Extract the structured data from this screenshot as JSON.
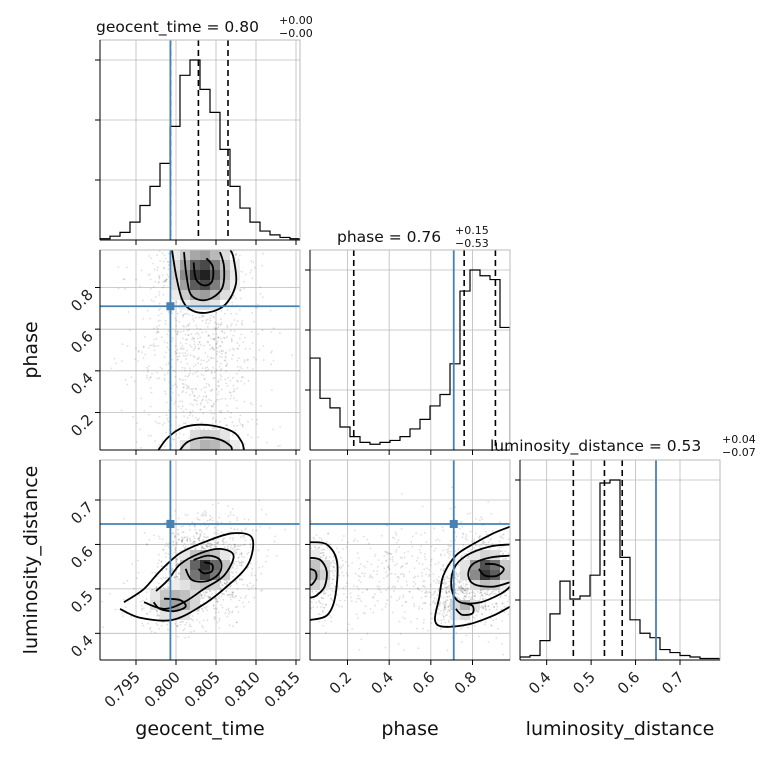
{
  "chart_data": {
    "type": "corner",
    "parameters": [
      "geocent_time",
      "phase",
      "luminosity_distance"
    ],
    "truths": {
      "geocent_time": 0.7993,
      "phase": 0.71,
      "luminosity_distance": 0.646
    },
    "truth_color": "#4682b4",
    "panels": [
      {
        "kind": "hist1d",
        "param": "geocent_time",
        "title": {
          "main": "geocent_time = 0.80",
          "sup": "+0.00",
          "sub": "−0.00"
        },
        "xlim": [
          0.7905,
          0.8155
        ],
        "edges": [
          0.7905,
          0.79175,
          0.793,
          0.79425,
          0.7955,
          0.79675,
          0.798,
          0.79925,
          0.8005,
          0.80175,
          0.803,
          0.80425,
          0.8055,
          0.80675,
          0.808,
          0.80925,
          0.8105,
          0.81175,
          0.813,
          0.81425,
          0.8155
        ],
        "counts": [
          1,
          3,
          6,
          14,
          27,
          42,
          60,
          89,
          129,
          141,
          118,
          100,
          71,
          42,
          25,
          14,
          7,
          4,
          2,
          1
        ],
        "quantiles": [
          0.7993,
          0.8028,
          0.8065
        ],
        "ygrid_fractions": [
          0.3,
          0.6,
          0.9
        ]
      },
      {
        "kind": "hist1d",
        "param": "phase",
        "title": {
          "main": "phase = 0.76",
          "sup": "+0.15",
          "sub": "−0.53"
        },
        "xlim": [
          0.02,
          0.98
        ],
        "edges": [
          0.02,
          0.068,
          0.116,
          0.164,
          0.212,
          0.26,
          0.308,
          0.356,
          0.404,
          0.452,
          0.5,
          0.548,
          0.596,
          0.644,
          0.692,
          0.74,
          0.788,
          0.836,
          0.884,
          0.932,
          0.98
        ],
        "counts": [
          48,
          27,
          22,
          12,
          7,
          4,
          3,
          4,
          5,
          7,
          11,
          16,
          23,
          29,
          45,
          83,
          94,
          91,
          89,
          64
        ],
        "quantiles": [
          0.23,
          0.76,
          0.91
        ],
        "ygrid_fractions": [
          0.3,
          0.6,
          0.9
        ]
      },
      {
        "kind": "hist1d",
        "param": "luminosity_distance",
        "title": {
          "main": "luminosity_distance = 0.53",
          "sup": "+0.04",
          "sub": "−0.07"
        },
        "xlim": [
          0.34,
          0.79
        ],
        "edges": [
          0.34,
          0.3625,
          0.385,
          0.4075,
          0.43,
          0.4525,
          0.475,
          0.4975,
          0.52,
          0.5425,
          0.565,
          0.5875,
          0.61,
          0.6325,
          0.655,
          0.6775,
          0.7,
          0.7225,
          0.745,
          0.7675,
          0.79
        ],
        "counts": [
          2,
          3,
          13,
          31,
          53,
          41,
          43,
          57,
          119,
          121,
          69,
          27,
          18,
          15,
          7,
          5,
          3,
          2,
          1,
          1
        ],
        "quantiles": [
          0.46,
          0.53,
          0.57
        ],
        "ygrid_fractions": [
          0.3,
          0.6,
          0.9
        ]
      }
    ],
    "axes": {
      "geocent_time": {
        "range": [
          0.7905,
          0.8155
        ],
        "ticks": [
          0.795,
          0.8,
          0.805,
          0.81,
          0.815
        ],
        "tick_labels": [
          "0.795",
          "0.800",
          "0.805",
          "0.810",
          "0.815"
        ],
        "label": "geocent_time"
      },
      "phase": {
        "range": [
          0.02,
          0.98
        ],
        "ticks": [
          0.2,
          0.4,
          0.6,
          0.8
        ],
        "tick_labels": [
          "0.2",
          "0.4",
          "0.6",
          "0.8"
        ],
        "label": "phase"
      },
      "luminosity_distance": {
        "range": [
          0.34,
          0.79
        ],
        "ticks": [
          0.4,
          0.5,
          0.6,
          0.7
        ],
        "tick_labels": [
          "0.4",
          "0.5",
          "0.6",
          "0.7"
        ],
        "label": "luminosity_distance"
      }
    },
    "scatter_panels": [
      {
        "x": "geocent_time",
        "y": "phase",
        "blobs": [
          {
            "cx": 0.8033,
            "cy": 0.86,
            "sx": 0.0026,
            "sy": 0.08,
            "n": 520
          },
          {
            "cx": 0.804,
            "cy": 0.05,
            "sx": 0.003,
            "sy": 0.06,
            "n": 160
          },
          {
            "cx": 0.803,
            "cy": 0.5,
            "sx": 0.004,
            "sy": 0.3,
            "n": 900
          }
        ],
        "peaks": [
          {
            "cx": 0.8033,
            "cy": 0.86,
            "sx": 0.0019,
            "sy": 0.075,
            "w": 1.0
          },
          {
            "cx": 0.804,
            "cy": 0.04,
            "sx": 0.002,
            "sy": 0.05,
            "w": 0.35
          }
        ],
        "contours": [
          [
            [
              0.7995,
              0.98
            ],
            [
              0.8,
              0.86
            ],
            [
              0.8008,
              0.74
            ],
            [
              0.802,
              0.69
            ],
            [
              0.804,
              0.68
            ],
            [
              0.8062,
              0.72
            ],
            [
              0.8075,
              0.82
            ],
            [
              0.8072,
              0.94
            ],
            [
              0.8068,
              0.98
            ]
          ],
          [
            [
              0.801,
              0.97
            ],
            [
              0.8013,
              0.86
            ],
            [
              0.8018,
              0.77
            ],
            [
              0.803,
              0.74
            ],
            [
              0.8045,
              0.75
            ],
            [
              0.8058,
              0.8
            ],
            [
              0.806,
              0.9
            ],
            [
              0.8055,
              0.97
            ]
          ],
          [
            [
              0.8022,
              0.92
            ],
            [
              0.8025,
              0.84
            ],
            [
              0.8035,
              0.81
            ],
            [
              0.8045,
              0.83
            ],
            [
              0.8046,
              0.9
            ],
            [
              0.8038,
              0.94
            ]
          ],
          [
            [
              0.7978,
              0.02
            ],
            [
              0.799,
              0.08
            ],
            [
              0.801,
              0.13
            ],
            [
              0.804,
              0.14
            ],
            [
              0.807,
              0.11
            ],
            [
              0.8082,
              0.06
            ],
            [
              0.8085,
              0.02
            ]
          ],
          [
            [
              0.8005,
              0.02
            ],
            [
              0.8015,
              0.06
            ],
            [
              0.8035,
              0.08
            ],
            [
              0.8055,
              0.07
            ],
            [
              0.8068,
              0.04
            ],
            [
              0.807,
              0.02
            ]
          ]
        ]
      },
      {
        "x": "geocent_time",
        "y": "luminosity_distance",
        "blobs": [
          {
            "cx": 0.8035,
            "cy": 0.535,
            "sx": 0.0028,
            "sy": 0.045,
            "n": 800
          },
          {
            "cx": 0.8,
            "cy": 0.465,
            "sx": 0.003,
            "sy": 0.03,
            "n": 300
          },
          {
            "cx": 0.804,
            "cy": 0.6,
            "sx": 0.0035,
            "sy": 0.035,
            "n": 300
          }
        ],
        "peaks": [
          {
            "cx": 0.8036,
            "cy": 0.545,
            "sx": 0.0016,
            "sy": 0.022,
            "w": 1.0
          },
          {
            "cx": 0.8,
            "cy": 0.47,
            "sx": 0.0018,
            "sy": 0.02,
            "w": 0.45
          }
        ],
        "contours": [
          [
            [
              0.793,
              0.455
            ],
            [
              0.7955,
              0.435
            ],
            [
              0.7995,
              0.43
            ],
            [
              0.803,
              0.46
            ],
            [
              0.806,
              0.5
            ],
            [
              0.809,
              0.555
            ],
            [
              0.8095,
              0.615
            ],
            [
              0.807,
              0.625
            ],
            [
              0.8035,
              0.605
            ],
            [
              0.8005,
              0.58
            ],
            [
              0.798,
              0.54
            ],
            [
              0.796,
              0.5
            ],
            [
              0.7935,
              0.47
            ]
          ],
          [
            [
              0.796,
              0.47
            ],
            [
              0.7985,
              0.455
            ],
            [
              0.801,
              0.47
            ],
            [
              0.8035,
              0.5
            ],
            [
              0.806,
              0.53
            ],
            [
              0.8072,
              0.575
            ],
            [
              0.8055,
              0.59
            ],
            [
              0.803,
              0.58
            ],
            [
              0.8005,
              0.555
            ],
            [
              0.799,
              0.52
            ],
            [
              0.7975,
              0.495
            ]
          ],
          [
            [
              0.8012,
              0.545
            ],
            [
              0.802,
              0.52
            ],
            [
              0.804,
              0.518
            ],
            [
              0.8055,
              0.538
            ],
            [
              0.8055,
              0.565
            ],
            [
              0.804,
              0.575
            ],
            [
              0.8022,
              0.565
            ]
          ],
          [
            [
              0.8028,
              0.545
            ],
            [
              0.8035,
              0.535
            ],
            [
              0.8045,
              0.54
            ],
            [
              0.8045,
              0.555
            ],
            [
              0.8035,
              0.56
            ]
          ],
          [
            [
              0.7972,
              0.47
            ],
            [
              0.798,
              0.455
            ],
            [
              0.7998,
              0.45
            ],
            [
              0.8012,
              0.46
            ],
            [
              0.8005,
              0.475
            ],
            [
              0.7985,
              0.478
            ]
          ]
        ]
      },
      {
        "x": "phase",
        "y": "luminosity_distance",
        "blobs": [
          {
            "cx": 0.86,
            "cy": 0.535,
            "sx": 0.08,
            "sy": 0.045,
            "n": 700
          },
          {
            "cx": 0.72,
            "cy": 0.47,
            "sx": 0.07,
            "sy": 0.03,
            "n": 250
          },
          {
            "cx": 0.06,
            "cy": 0.53,
            "sx": 0.06,
            "sy": 0.045,
            "n": 280
          },
          {
            "cx": 0.5,
            "cy": 0.53,
            "sx": 0.28,
            "sy": 0.06,
            "n": 500
          }
        ],
        "peaks": [
          {
            "cx": 0.87,
            "cy": 0.54,
            "sx": 0.055,
            "sy": 0.02,
            "w": 1.0
          },
          {
            "cx": 0.05,
            "cy": 0.535,
            "sx": 0.04,
            "sy": 0.025,
            "w": 0.35
          },
          {
            "cx": 0.76,
            "cy": 0.46,
            "sx": 0.04,
            "sy": 0.015,
            "w": 0.35
          }
        ],
        "contours": [
          [
            [
              0.98,
              0.64
            ],
            [
              0.9,
              0.625
            ],
            [
              0.8,
              0.6
            ],
            [
              0.72,
              0.575
            ],
            [
              0.66,
              0.53
            ],
            [
              0.64,
              0.48
            ],
            [
              0.62,
              0.43
            ],
            [
              0.66,
              0.415
            ],
            [
              0.78,
              0.42
            ],
            [
              0.9,
              0.44
            ],
            [
              0.98,
              0.46
            ]
          ],
          [
            [
              0.98,
              0.6
            ],
            [
              0.88,
              0.595
            ],
            [
              0.77,
              0.575
            ],
            [
              0.71,
              0.545
            ],
            [
              0.7,
              0.5
            ],
            [
              0.74,
              0.47
            ],
            [
              0.84,
              0.47
            ],
            [
              0.94,
              0.49
            ],
            [
              0.98,
              0.505
            ]
          ],
          [
            [
              0.98,
              0.575
            ],
            [
              0.88,
              0.57
            ],
            [
              0.8,
              0.555
            ],
            [
              0.78,
              0.53
            ],
            [
              0.81,
              0.51
            ],
            [
              0.9,
              0.505
            ],
            [
              0.98,
              0.515
            ]
          ],
          [
            [
              0.83,
              0.545
            ],
            [
              0.86,
              0.53
            ],
            [
              0.92,
              0.53
            ],
            [
              0.95,
              0.545
            ],
            [
              0.91,
              0.555
            ],
            [
              0.86,
              0.556
            ]
          ],
          [
            [
              0.72,
              0.455
            ],
            [
              0.75,
              0.442
            ],
            [
              0.8,
              0.445
            ],
            [
              0.8,
              0.462
            ],
            [
              0.76,
              0.468
            ]
          ],
          [
            [
              0.02,
              0.605
            ],
            [
              0.1,
              0.6
            ],
            [
              0.15,
              0.56
            ],
            [
              0.14,
              0.48
            ],
            [
              0.1,
              0.44
            ],
            [
              0.02,
              0.43
            ]
          ],
          [
            [
              0.02,
              0.57
            ],
            [
              0.07,
              0.565
            ],
            [
              0.1,
              0.54
            ],
            [
              0.09,
              0.505
            ],
            [
              0.05,
              0.485
            ],
            [
              0.02,
              0.48
            ]
          ],
          [
            [
              0.02,
              0.545
            ],
            [
              0.045,
              0.54
            ],
            [
              0.05,
              0.525
            ],
            [
              0.03,
              0.51
            ],
            [
              0.02,
              0.51
            ]
          ]
        ]
      }
    ]
  }
}
